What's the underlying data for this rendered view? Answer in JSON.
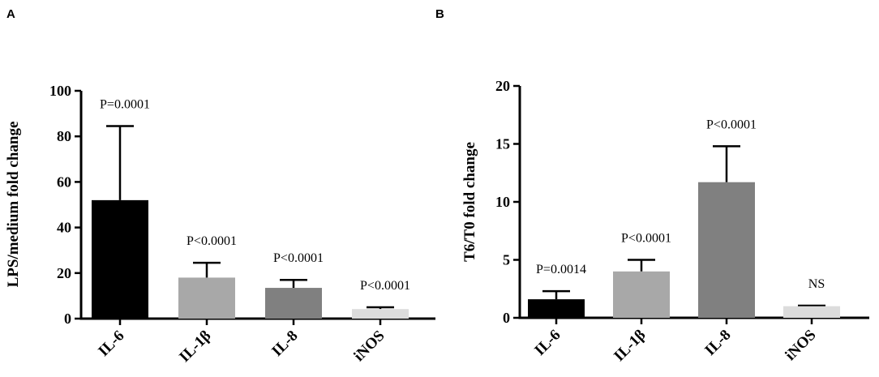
{
  "chart_data": [
    {
      "type": "bar",
      "panel": "A",
      "ylabel": "LPS/medium fold change",
      "ylim": [
        0,
        100
      ],
      "yticks": [
        0,
        20,
        40,
        60,
        80,
        100
      ],
      "categories": [
        "IL-6",
        "IL-1β",
        "IL-8",
        "iNOS"
      ],
      "values": [
        52,
        18,
        13.5,
        4.2
      ],
      "errors": [
        32.5,
        6.5,
        3.5,
        0.8
      ],
      "annotations": [
        "P=0.0001",
        "P<0.0001",
        "P<0.0001",
        "P<0.0001"
      ],
      "colors": [
        "#000000",
        "#a8a8a8",
        "#808080",
        "#dcdcdc"
      ]
    },
    {
      "type": "bar",
      "panel": "B",
      "ylabel": "T6/T0 fold change",
      "ylim": [
        0,
        20
      ],
      "yticks": [
        0,
        5,
        10,
        15,
        20
      ],
      "categories": [
        "IL-6",
        "IL-1β",
        "IL-8",
        "iNOS"
      ],
      "values": [
        1.6,
        4.0,
        11.7,
        1.0
      ],
      "errors": [
        0.7,
        1.0,
        3.1,
        0.05
      ],
      "annotations": [
        "P=0.0014",
        "P<0.0001",
        "P<0.0001",
        "NS"
      ],
      "colors": [
        "#000000",
        "#a8a8a8",
        "#808080",
        "#dcdcdc"
      ]
    }
  ]
}
